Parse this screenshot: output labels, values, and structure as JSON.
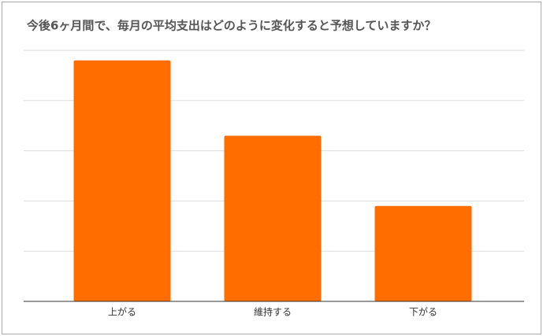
{
  "chart_data": {
    "type": "bar",
    "title": "今後6ヶ月間で、毎月の平均支出はどのように変化すると予想していますか？",
    "categories": [
      "上がる",
      "維持する",
      "下がる"
    ],
    "values": [
      4.8,
      3.3,
      1.9
    ],
    "color": "#ff6d00",
    "ylim": [
      0,
      5
    ],
    "yticks": [
      0,
      1,
      2,
      3,
      4,
      5
    ],
    "grid": true,
    "tick_labels": false
  }
}
